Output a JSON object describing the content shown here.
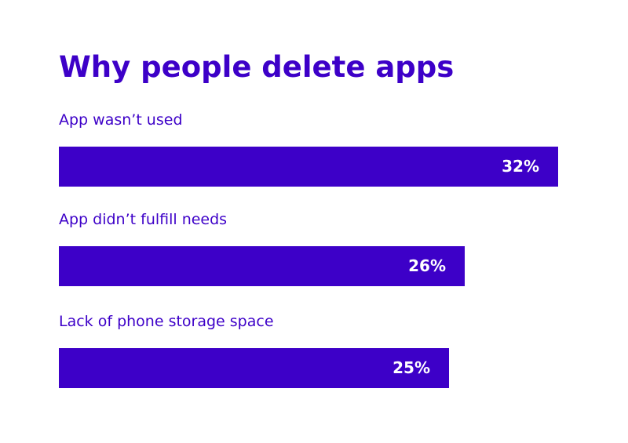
{
  "theme": {
    "accent": "#3d00c8",
    "text_on_bar": "#ffffff",
    "background": "#ffffff"
  },
  "chart_data": {
    "type": "bar",
    "orientation": "horizontal",
    "title": "Why people delete apps",
    "categories": [
      "App wasn’t used",
      "App didn’t fulfill needs",
      "Lack of phone storage space"
    ],
    "values": [
      32,
      26,
      25
    ],
    "value_labels": [
      "32%",
      "26%",
      "25%"
    ],
    "unit": "%",
    "grid": false,
    "legend": "none"
  }
}
